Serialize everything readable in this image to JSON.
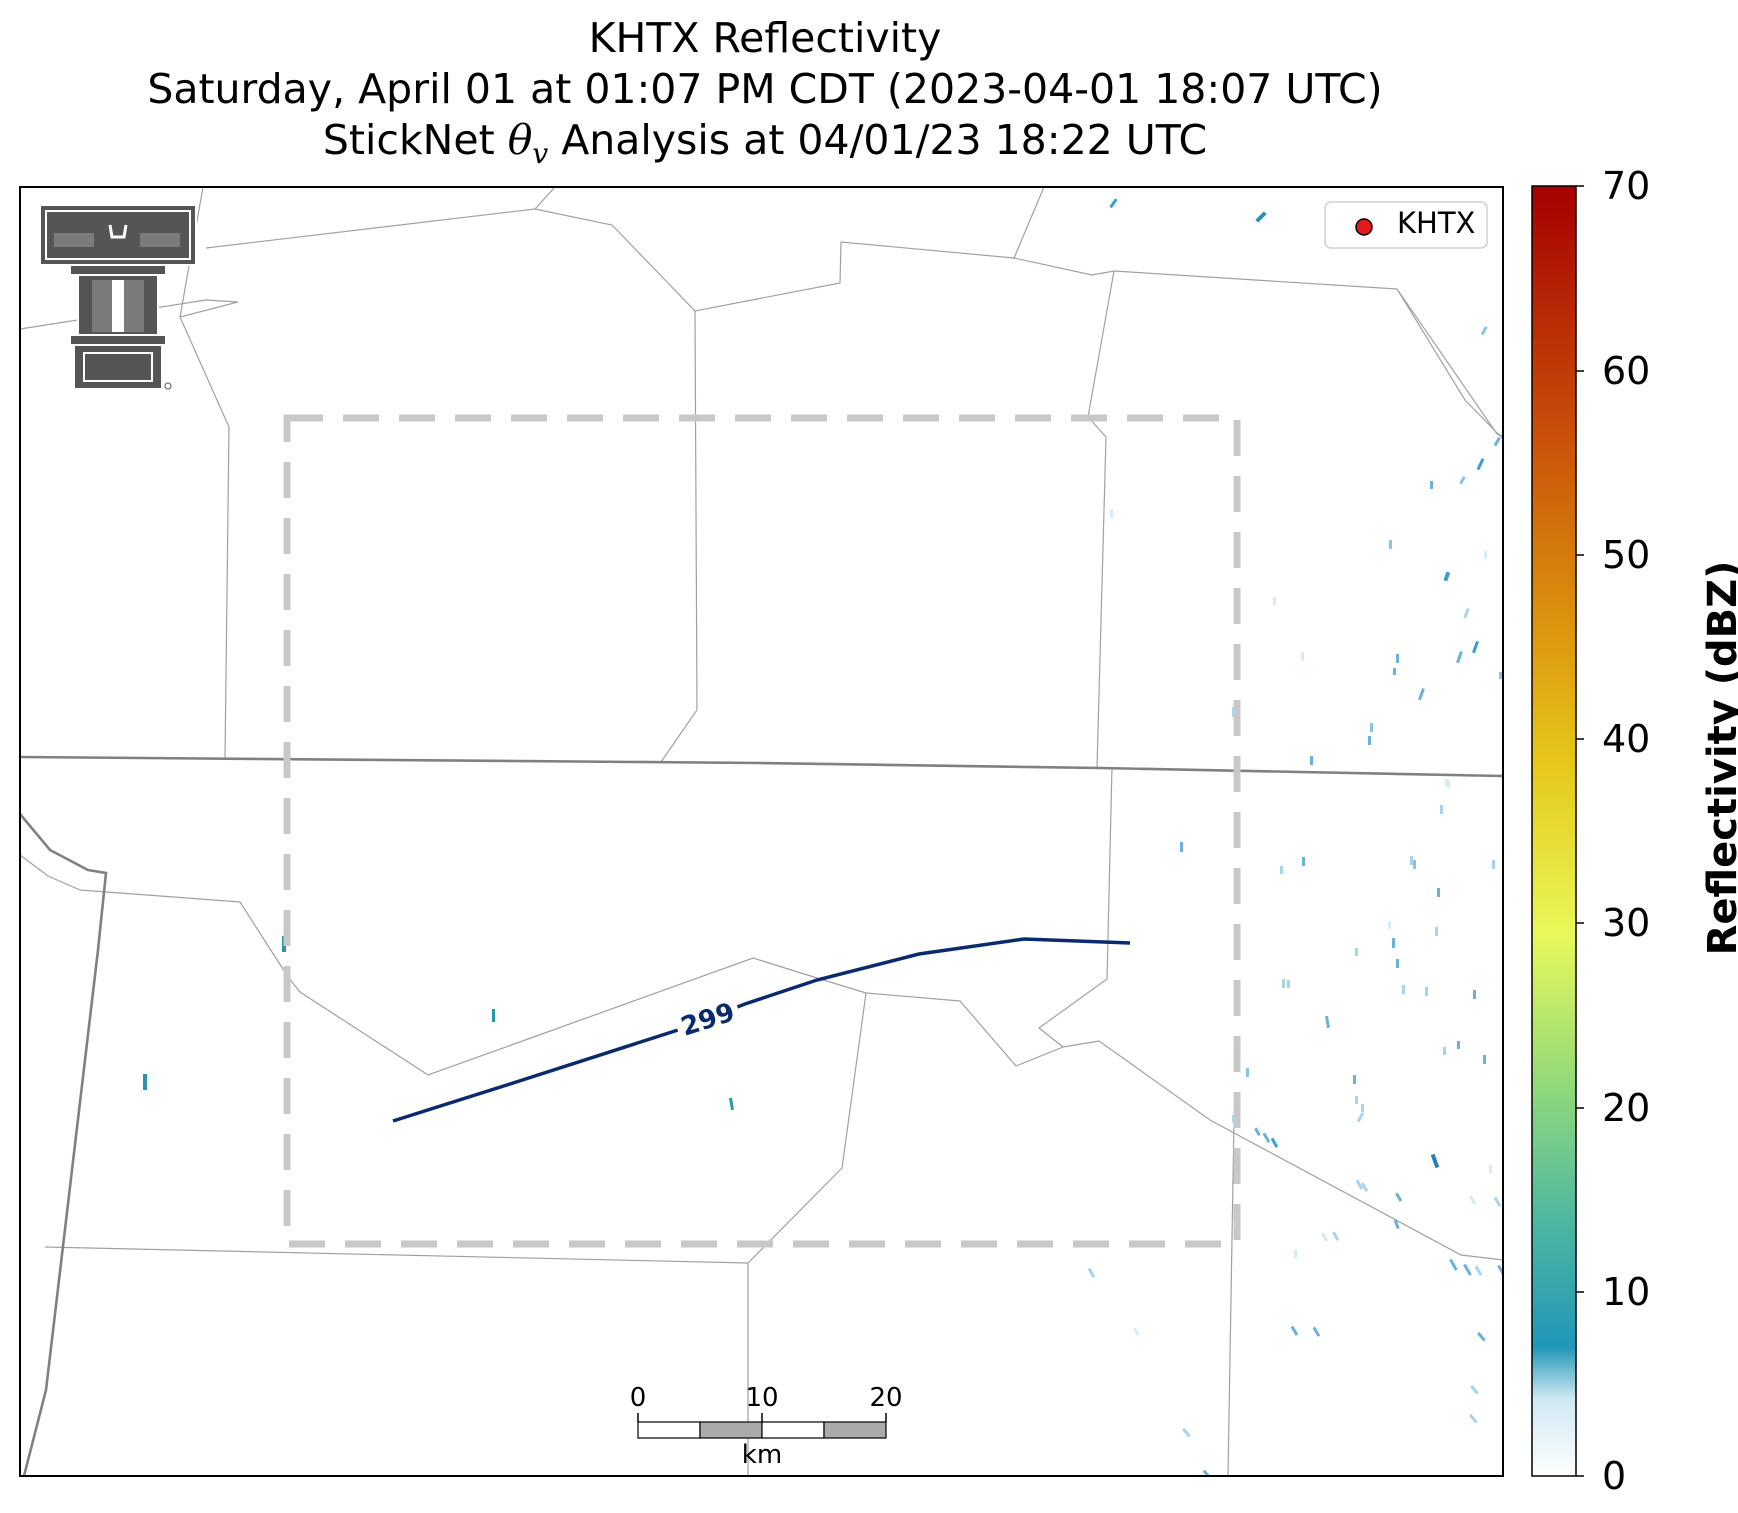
{
  "title": {
    "line1": "KHTX Reflectivity",
    "line2": "Saturday, April 01 at 01:07 PM CDT (2023-04-01 18:07 UTC)",
    "line3": "StickNet θv Analysis at 04/01/23 18:22 UTC"
  },
  "legend": {
    "label": "KHTX",
    "marker_color": "#e31a1c"
  },
  "contour": {
    "label": "299",
    "color": "#0a2a6e"
  },
  "colorbar": {
    "label": "Reflectivity (dBZ)",
    "ticks": [
      "0",
      "10",
      "20",
      "30",
      "40",
      "50",
      "60",
      "70"
    ],
    "range": [
      0,
      70
    ],
    "stops": [
      "#ffffff",
      "#2196b8",
      "#4fb8a0",
      "#8fd87a",
      "#e8f85a",
      "#e6c81a",
      "#d98a0c",
      "#c84a0a",
      "#a50000"
    ]
  },
  "scalebar": {
    "ticks": [
      "0",
      "10",
      "20"
    ],
    "unit": "km"
  },
  "logo": {
    "text": "Texas Tech Double T"
  },
  "colors": {
    "study_box": "#c8c8c8",
    "borders": "#808080",
    "counties": "#a0a0a0",
    "logo": "#555555"
  }
}
